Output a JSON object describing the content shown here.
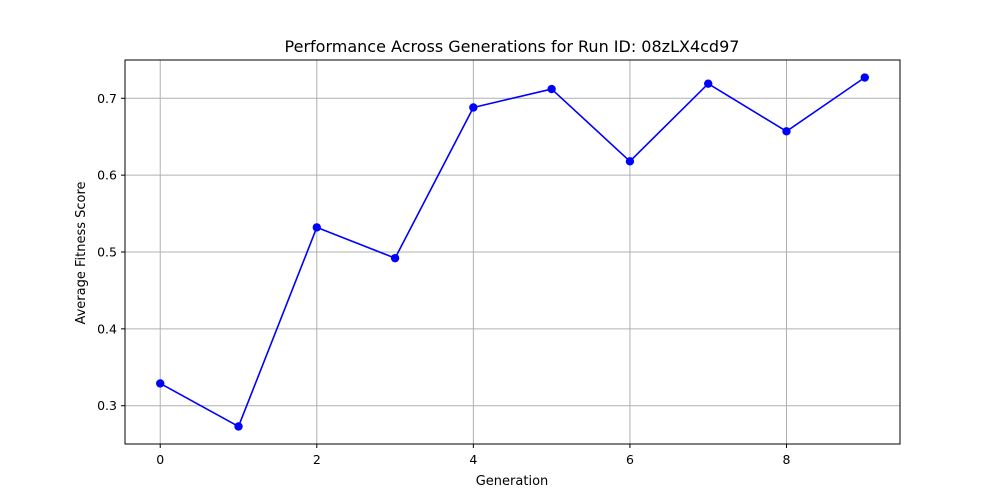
{
  "chart_data": {
    "type": "line",
    "title": "Performance Across Generations for Run ID: 08zLX4cd97",
    "xlabel": "Generation",
    "ylabel": "Average Fitness Score",
    "x": [
      0,
      1,
      2,
      3,
      4,
      5,
      6,
      7,
      8,
      9
    ],
    "series": [
      {
        "values": [
          0.329,
          0.273,
          0.532,
          0.492,
          0.688,
          0.712,
          0.618,
          0.719,
          0.657,
          0.727
        ],
        "color": "#0000ff",
        "marker": "circle"
      }
    ],
    "xlim": [
      -0.45,
      9.45
    ],
    "ylim": [
      0.2502,
      0.7498
    ],
    "xticks": [
      0,
      2,
      4,
      6,
      8
    ],
    "yticks": [
      0.3,
      0.4,
      0.5,
      0.6,
      0.7
    ],
    "xtick_labels": [
      "0",
      "2",
      "4",
      "6",
      "8"
    ],
    "ytick_labels": [
      "0.3",
      "0.4",
      "0.5",
      "0.6",
      "0.7"
    ],
    "grid": true,
    "legend": "none"
  }
}
